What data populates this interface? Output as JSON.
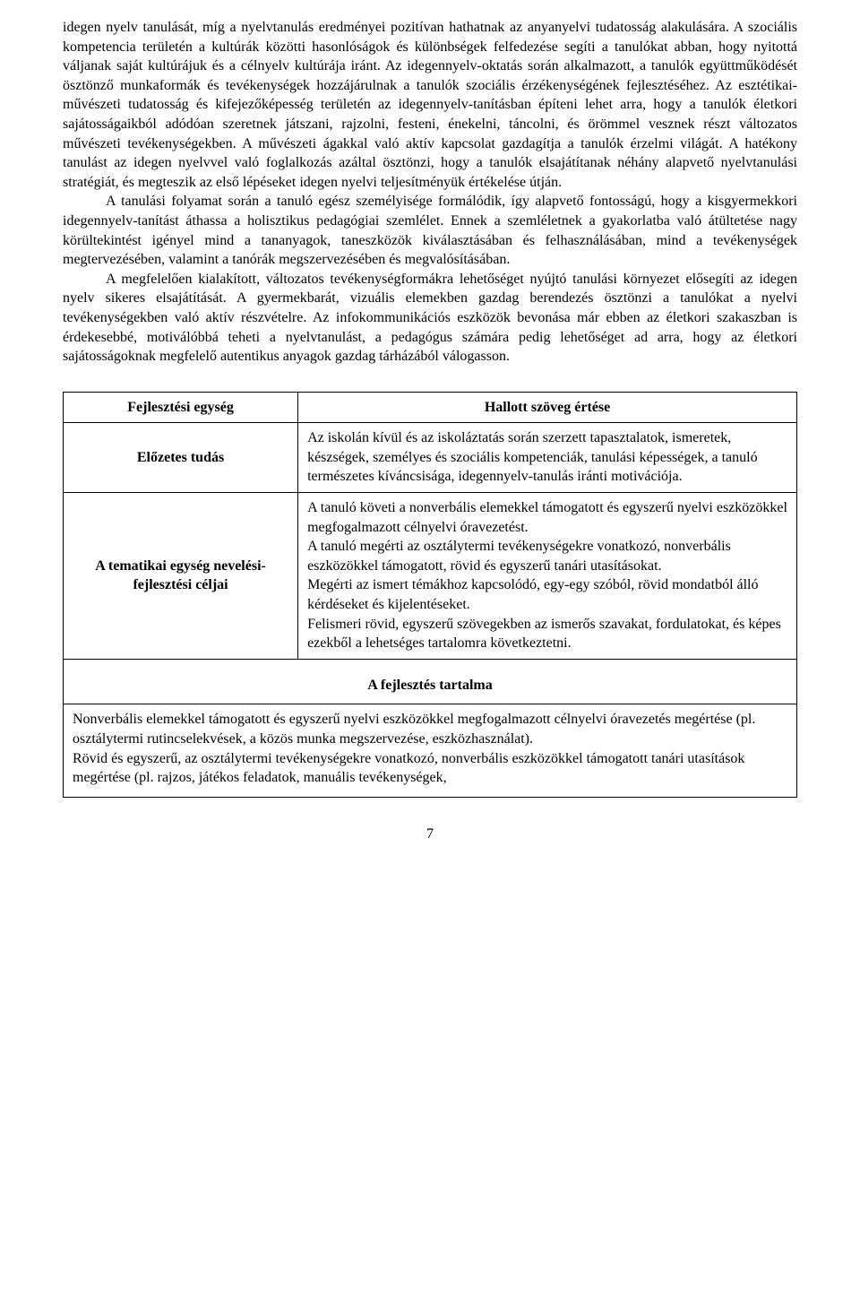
{
  "paragraphs": {
    "p1": "idegen nyelv tanulását, míg a nyelvtanulás eredményei pozitívan hathatnak az anyanyelvi tudatosság alakulására. A szociális kompetencia területén a kultúrák közötti hasonlóságok és különbségek felfedezése segíti a tanulókat abban, hogy nyitottá váljanak saját kultúrájuk és a célnyelv kultúrája iránt. Az idegennyelv-oktatás során alkalmazott, a tanulók együttműködését ösztönző munkaformák és tevékenységek hozzájárulnak a tanulók szociális érzékenységének fejlesztéséhez. Az esztétikai-művészeti tudatosság és kifejezőképesség területén az idegennyelv-tanításban építeni lehet arra, hogy a tanulók életkori sajátosságaikból adódóan szeretnek játszani, rajzolni, festeni, énekelni, táncolni, és örömmel vesznek részt változatos művészeti tevékenységekben. A művészeti ágakkal való aktív kapcsolat gazdagítja a tanulók érzelmi világát. A hatékony tanulást az idegen nyelvvel való foglalkozás azáltal ösztönzi, hogy a tanulók elsajátítanak néhány alapvető nyelvtanulási stratégiát, és megteszik az első lépéseket idegen nyelvi teljesítményük értékelése útján.",
    "p2": "A tanulási folyamat során a tanuló egész személyisége formálódik, így alapvető fontosságú, hogy a kisgyermekkori idegennyelv-tanítást áthassa a holisztikus pedagógiai szemlélet. Ennek a szemléletnek a gyakorlatba való átültetése nagy körültekintést igényel mind a tananyagok, taneszközök kiválasztásában és felhasználásában, mind a tevékenységek megtervezésében, valamint a tanórák megszervezésében és megvalósításában.",
    "p3": "A megfelelően kialakított, változatos tevékenységformákra lehetőséget nyújtó tanulási környezet elősegíti az idegen nyelv sikeres elsajátítását. A gyermekbarát, vizuális elemekben gazdag berendezés ösztönzi a tanulókat a nyelvi tevékenységekben való aktív részvételre. Az infokommunikációs eszközök bevonása már ebben az életkori szakaszban is érdekesebbé, motiválóbbá teheti a nyelvtanulást, a pedagógus számára pedig lehetőséget ad arra, hogy az életkori sajátosságoknak megfelelő autentikus anyagok gazdag tárházából válogasson."
  },
  "table": {
    "r1c1": "Fejlesztési egység",
    "r1c2": "Hallott szöveg értése",
    "r2c1": "Előzetes tudás",
    "r2c2": "Az iskolán kívül és az iskoláztatás során szerzett tapasztalatok, ismeretek, készségek, személyes és szociális kompetenciák, tanulási képességek, a tanuló természetes kíváncsisága, idegennyelv-tanulás iránti motivációja.",
    "r3c1": "A tematikai egység nevelési-fejlesztési céljai",
    "r3c2": "A tanuló követi a nonverbális elemekkel támogatott és egyszerű nyelvi eszközökkel megfogalmazott célnyelvi óravezetést.\nA tanuló megérti az osztálytermi tevékenységekre vonatkozó, nonverbális eszközökkel támogatott, rövid és egyszerű tanári utasításokat.\nMegérti az ismert témákhoz kapcsolódó, egy-egy szóból, rövid mondatból álló kérdéseket és kijelentéseket.\nFelismeri rövid, egyszerű szövegekben az ismerős szavakat, fordulatokat, és képes ezekből a lehetséges tartalomra következtetni.",
    "subhead": "A fejlesztés tartalma",
    "content": "Nonverbális elemekkel támogatott és egyszerű nyelvi eszközökkel megfogalmazott célnyelvi óravezetés megértése (pl. osztálytermi rutincselekvések, a közös munka megszervezése, eszközhasználat).\nRövid és egyszerű, az osztálytermi tevékenységekre vonatkozó, nonverbális eszközökkel támogatott tanári utasítások megértése (pl. rajzos, játékos feladatok, manuális tevékenységek,"
  },
  "pageNumber": "7"
}
